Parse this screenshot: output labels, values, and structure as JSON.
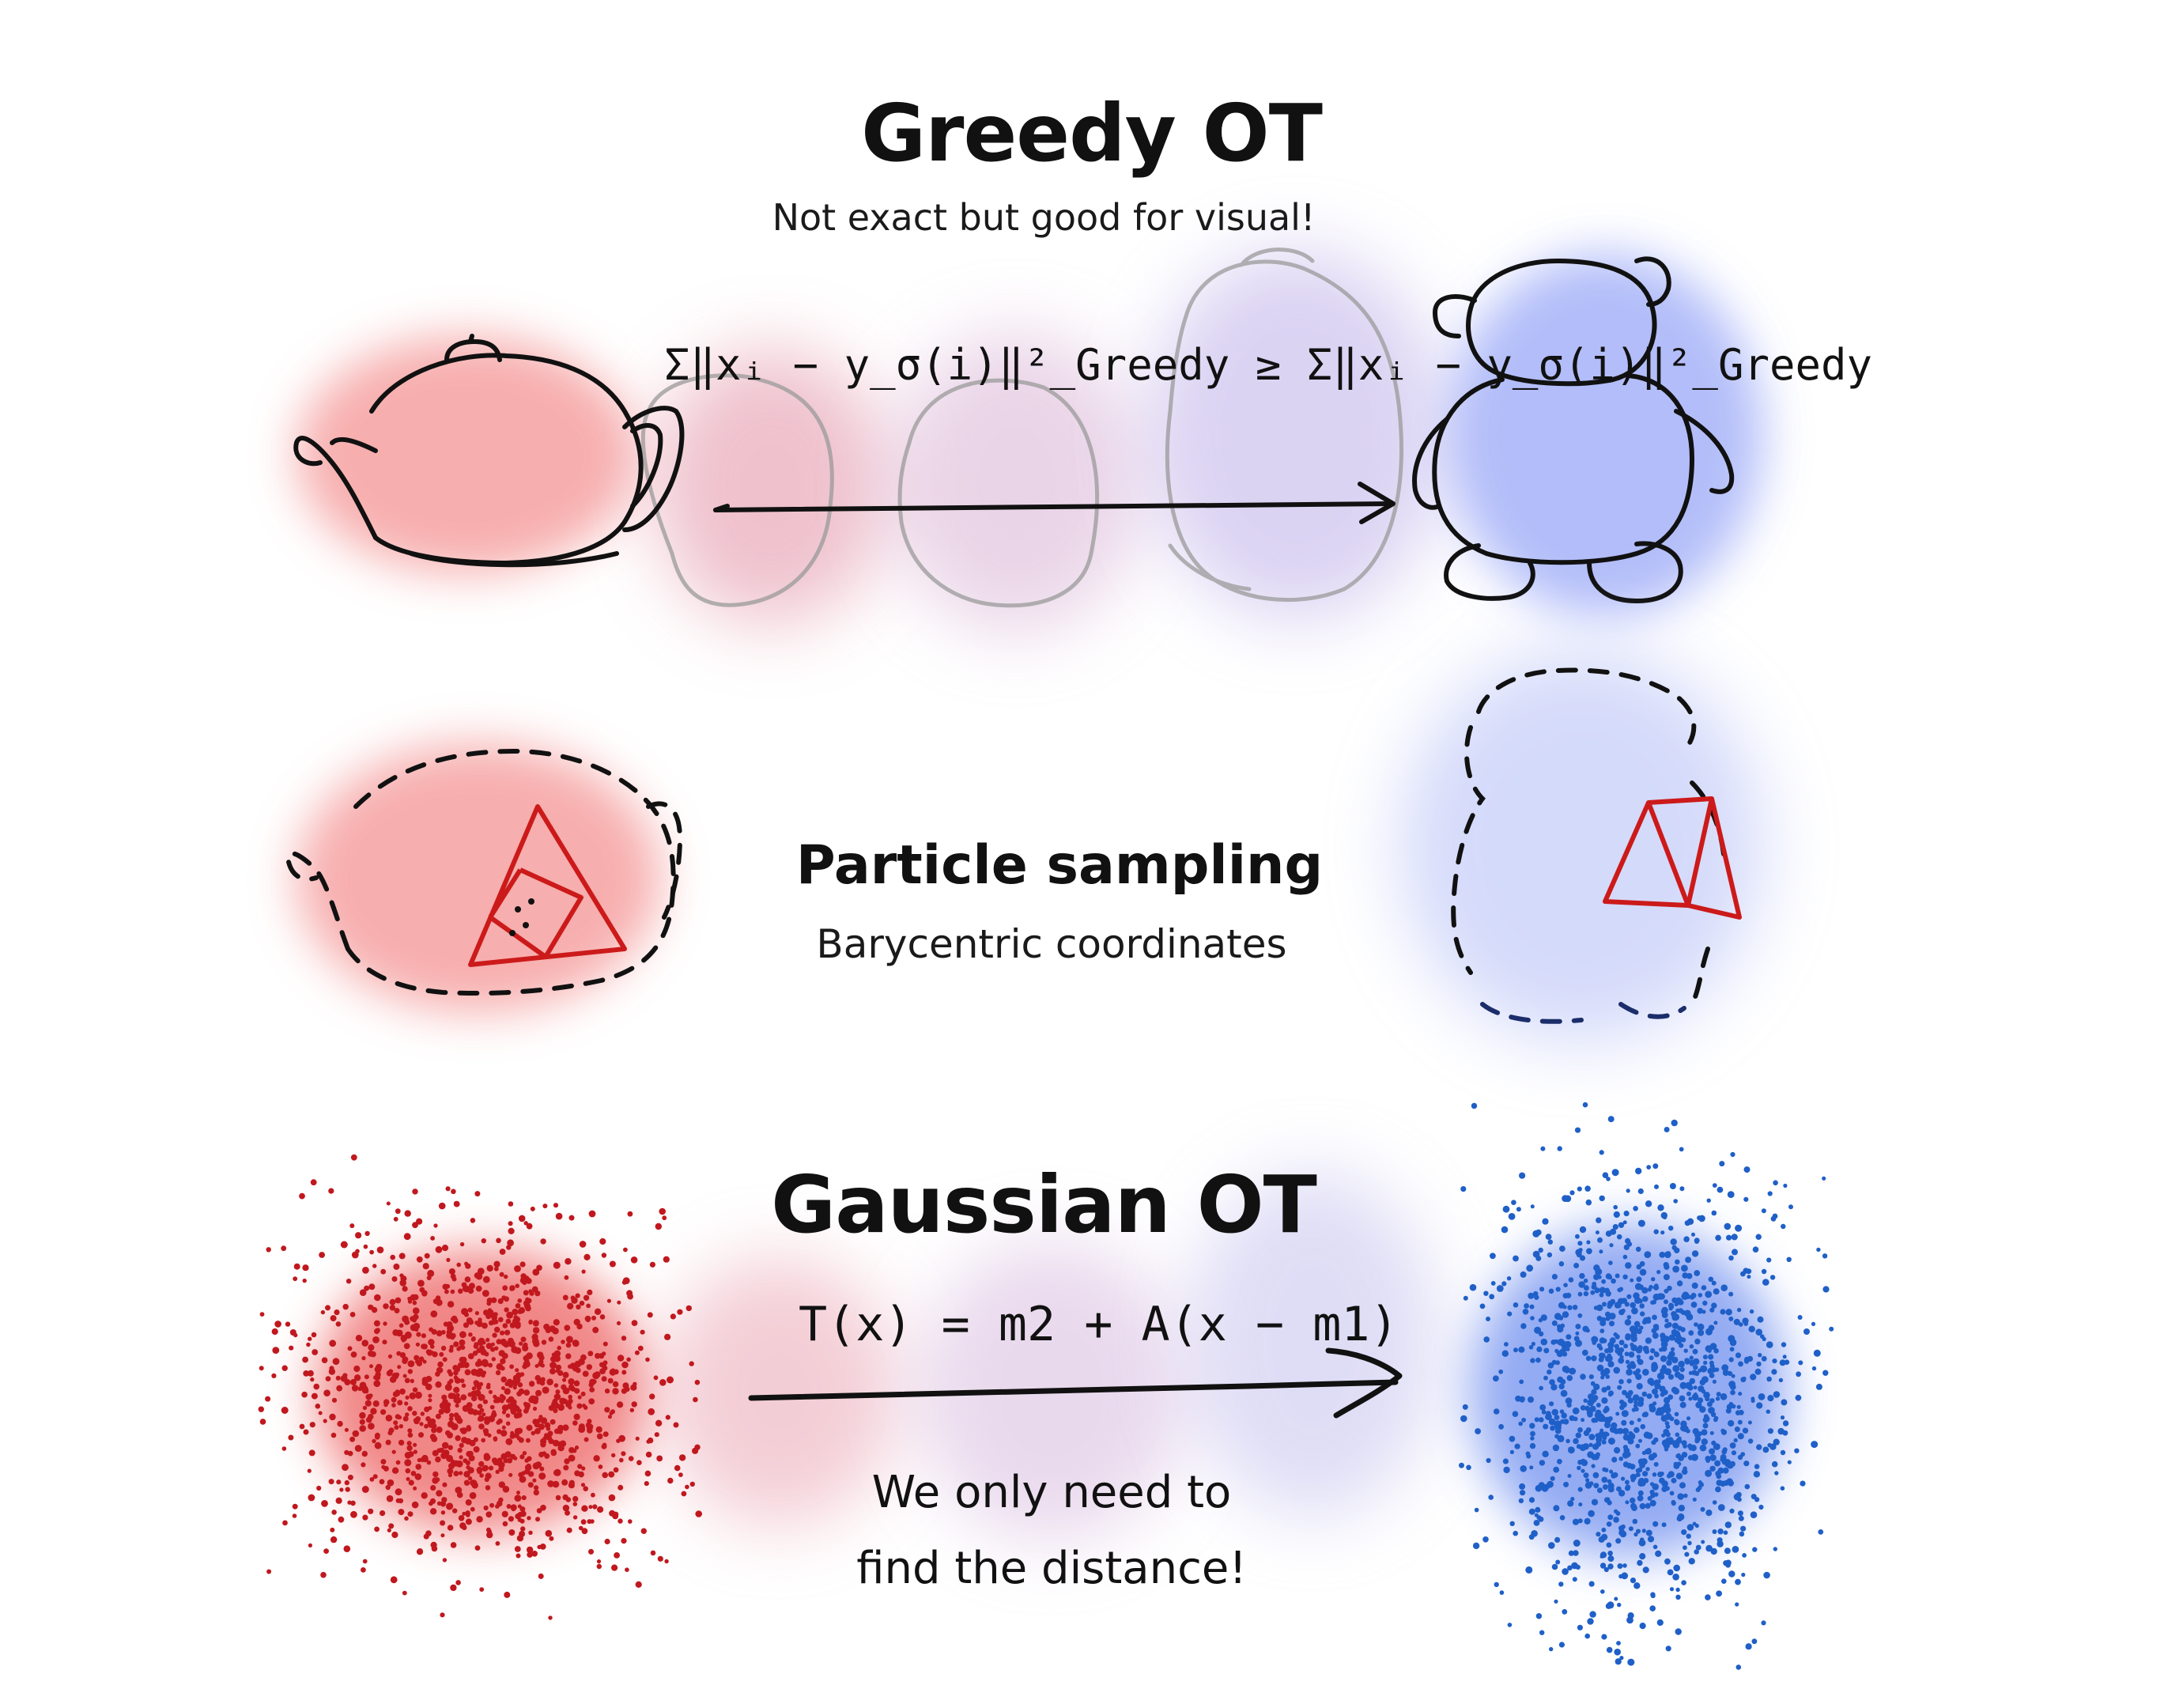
{
  "greedy": {
    "title": "Greedy OT",
    "subtitle": "Not exact but good for visual!",
    "formula": "Σ‖xᵢ − y_σ(i)‖²_Greedy ≥ Σ‖xᵢ − y_σ(i)‖²_Greedy"
  },
  "particle": {
    "title": "Particle sampling",
    "subtitle": "Barycentric coordinates"
  },
  "gaussian": {
    "title": "Gaussian OT",
    "formula": "T(x) = m2 + A(x − m1)",
    "note_line1": "We only need to",
    "note_line2": "find the distance!"
  },
  "colors": {
    "source_red": "#f08080",
    "target_blue": "#8fa0f5",
    "scatter_red": "#c0181e",
    "scatter_blue": "#1f5fc8",
    "triangle_red": "#cc1a1a",
    "ink": "#111111",
    "ghost": "#9a9a9a"
  },
  "icons": [
    "teapot-outline",
    "bear-outline",
    "dashed-teapot",
    "dashed-bear",
    "red-particle-cloud",
    "blue-particle-cloud",
    "transport-arrow"
  ]
}
